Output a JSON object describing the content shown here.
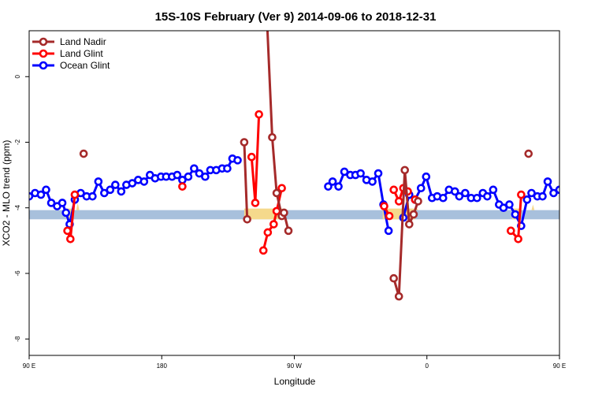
{
  "chart_data": {
    "type": "line",
    "title": "15S-10S February (Ver 9)   2014-09-06 to 2018-12-31",
    "xlabel": "Longitude",
    "ylabel": "XCO2 - MLO trend (ppm)",
    "xlim": [
      90,
      450
    ],
    "ylim": [
      -8.5,
      1.4
    ],
    "x_ticks": [
      {
        "value": 90,
        "label": "90 E"
      },
      {
        "value": 180,
        "label": "180"
      },
      {
        "value": 270,
        "label": "90 W"
      },
      {
        "value": 360,
        "label": "0"
      },
      {
        "value": 450,
        "label": "90 E"
      },
      {
        "value": 540,
        "label": "180"
      }
    ],
    "y_ticks": [
      {
        "value": 0,
        "label": "0"
      },
      {
        "value": -2,
        "label": "-2"
      },
      {
        "value": -4,
        "label": "-4"
      },
      {
        "value": -6,
        "label": "-6"
      },
      {
        "value": -8,
        "label": "-8"
      }
    ],
    "legend_position": "top-left",
    "grid": false,
    "series": [
      {
        "name": "Ocean Glint",
        "color": "#0000ff",
        "points": [
          [
            90,
            -3.65
          ],
          [
            94,
            -3.55
          ],
          [
            98,
            -3.6
          ],
          [
            101.5,
            -3.45
          ],
          [
            105,
            -3.85
          ],
          [
            109,
            -3.95
          ],
          [
            112.5,
            -3.85
          ],
          [
            115,
            -4.15
          ],
          [
            117.5,
            -4.5
          ],
          [
            121,
            -3.75
          ],
          [
            125,
            -3.55
          ],
          [
            129,
            -3.65
          ],
          [
            133,
            -3.65
          ],
          [
            137,
            -3.2
          ],
          [
            141,
            -3.55
          ],
          [
            145,
            -3.45
          ],
          [
            148.5,
            -3.3
          ],
          [
            152.5,
            -3.5
          ],
          [
            156,
            -3.3
          ],
          [
            160,
            -3.25
          ],
          [
            164,
            -3.15
          ],
          [
            168,
            -3.2
          ],
          [
            172,
            -3.0
          ],
          [
            175.5,
            -3.1
          ],
          [
            179.5,
            -3.05
          ],
          [
            183,
            -3.05
          ],
          [
            187,
            -3.05
          ],
          [
            190.5,
            -3.0
          ],
          [
            194,
            -3.15
          ],
          [
            198,
            -3.05
          ],
          [
            202,
            -2.8
          ],
          [
            205.5,
            -2.95
          ],
          [
            209.5,
            -3.05
          ],
          [
            213,
            -2.85
          ],
          [
            217,
            -2.85
          ],
          [
            221,
            -2.8
          ],
          [
            224.5,
            -2.8
          ],
          [
            228,
            -2.5
          ],
          [
            231.5,
            -2.55
          ],
          null,
          [
            293,
            -3.35
          ],
          [
            296,
            -3.2
          ],
          [
            300,
            -3.35
          ],
          [
            304,
            -2.9
          ],
          [
            308,
            -3.0
          ],
          [
            311.5,
            -3.0
          ],
          [
            315,
            -2.95
          ],
          [
            319,
            -3.15
          ],
          [
            323,
            -3.2
          ],
          [
            327,
            -2.95
          ],
          [
            330.5,
            -3.9
          ],
          [
            334,
            -4.7
          ],
          null,
          [
            344,
            -4.3
          ],
          [
            348,
            -3.6
          ],
          [
            352,
            -3.75
          ],
          [
            356,
            -3.4
          ],
          [
            359.5,
            -3.05
          ],
          [
            363.5,
            -3.7
          ],
          [
            367,
            -3.65
          ],
          [
            371,
            -3.7
          ],
          [
            375,
            -3.45
          ],
          [
            379,
            -3.5
          ],
          [
            382,
            -3.65
          ],
          [
            386,
            -3.55
          ],
          [
            390,
            -3.7
          ],
          [
            394,
            -3.7
          ],
          [
            398,
            -3.55
          ],
          [
            401,
            -3.65
          ],
          [
            405,
            -3.45
          ],
          [
            409,
            -3.9
          ],
          [
            412,
            -4.0
          ],
          [
            416,
            -3.9
          ],
          [
            420,
            -4.2
          ],
          [
            424,
            -4.55
          ],
          [
            428,
            -3.75
          ],
          [
            431,
            -3.55
          ],
          [
            435,
            -3.65
          ],
          [
            438.5,
            -3.65
          ],
          [
            442,
            -3.2
          ],
          [
            446,
            -3.55
          ],
          [
            450,
            -3.45
          ],
          [
            454,
            -3.3
          ],
          [
            457,
            -3.55
          ]
        ]
      },
      {
        "name": "Land Glint",
        "color": "#ff0000",
        "points": [
          [
            116,
            -4.7
          ],
          [
            118,
            -4.95
          ],
          [
            121,
            -3.6
          ],
          null,
          [
            194,
            -3.35
          ],
          null,
          [
            246,
            -1.15
          ],
          [
            243.5,
            -3.85
          ],
          [
            241,
            -2.45
          ],
          null,
          [
            249,
            -5.3
          ],
          [
            252,
            -4.75
          ],
          [
            256,
            -4.5
          ],
          [
            258,
            -4.1
          ],
          [
            261.5,
            -3.4
          ],
          null,
          [
            331,
            -3.95
          ],
          [
            334.5,
            -4.25
          ],
          null,
          [
            337.5,
            -3.45
          ],
          [
            341,
            -3.8
          ],
          [
            344,
            -3.4
          ],
          [
            347,
            -3.5
          ],
          null,
          [
            352,
            -3.75
          ],
          null,
          [
            417,
            -4.7
          ],
          [
            422,
            -4.95
          ],
          [
            424,
            -3.6
          ]
        ]
      },
      {
        "name": "Land Nadir",
        "color": "#a52a2a",
        "points": [
          [
            127,
            -2.35
          ],
          null,
          [
            236,
            -2.0
          ],
          [
            238,
            -4.35
          ],
          null,
          [
            250,
            3.2
          ],
          [
            255,
            -1.85
          ],
          [
            258,
            -3.55
          ],
          [
            261.5,
            -4.25
          ],
          [
            263,
            -4.15
          ],
          [
            266,
            -4.7
          ],
          null,
          [
            337.5,
            -6.15
          ],
          [
            341,
            -6.7
          ],
          [
            345,
            -2.85
          ],
          [
            348,
            -4.5
          ],
          [
            351,
            -4.2
          ],
          [
            354,
            -3.8
          ],
          null,
          [
            429,
            -2.35
          ]
        ]
      }
    ],
    "band": {
      "y_min": -4.35,
      "y_max": -4.07,
      "color": "#a8c0dc"
    },
    "yellow_color": "#f5d98c"
  }
}
